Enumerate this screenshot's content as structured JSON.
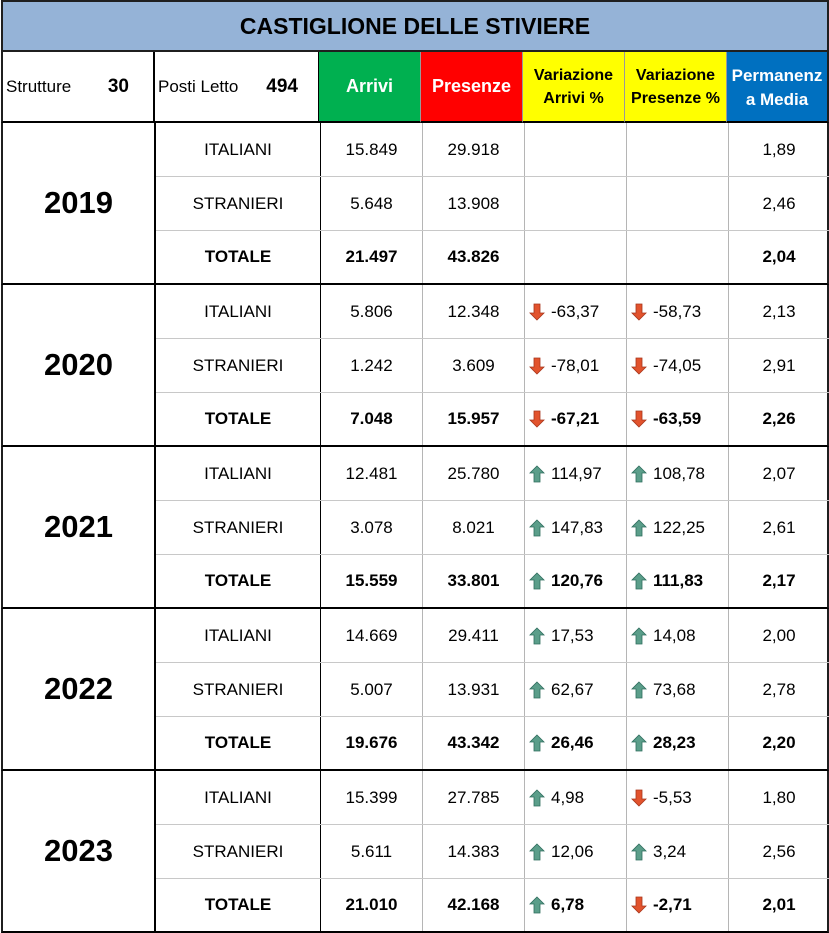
{
  "title": "CASTIGLIONE DELLE STIVIERE",
  "header": {
    "strutture_label": "Strutture",
    "strutture_value": "30",
    "posti_label": "Posti Letto",
    "posti_value": "494",
    "arrivi": "Arrivi",
    "presenze": "Presenze",
    "var_arrivi_1": "Variazione",
    "var_arrivi_2": "Arrivi %",
    "var_presenze_1": "Variazione",
    "var_presenze_2": "Presenze %",
    "perm_1": "Permanenz",
    "perm_2": "a Media"
  },
  "colors": {
    "up": "#5b9e8a",
    "down": "#e2532d",
    "arrivi": "#00b050",
    "presenze": "#ff0000",
    "variazione": "#ffff00",
    "permanenza": "#0070c0",
    "title_bg": "#95b3d7"
  },
  "years": [
    {
      "year": "2019",
      "rows": [
        {
          "type": "ITALIANI",
          "arrivi": "15.849",
          "presenze": "29.918",
          "var_arr": "",
          "var_arr_dir": "",
          "var_pres": "",
          "var_pres_dir": "",
          "perm": "1,89"
        },
        {
          "type": "STRANIERI",
          "arrivi": "5.648",
          "presenze": "13.908",
          "var_arr": "",
          "var_arr_dir": "",
          "var_pres": "",
          "var_pres_dir": "",
          "perm": "2,46"
        },
        {
          "type": "TOTALE",
          "arrivi": "21.497",
          "presenze": "43.826",
          "var_arr": "",
          "var_arr_dir": "",
          "var_pres": "",
          "var_pres_dir": "",
          "perm": "2,04"
        }
      ]
    },
    {
      "year": "2020",
      "rows": [
        {
          "type": "ITALIANI",
          "arrivi": "5.806",
          "presenze": "12.348",
          "var_arr": "-63,37",
          "var_arr_dir": "down",
          "var_pres": "-58,73",
          "var_pres_dir": "down",
          "perm": "2,13"
        },
        {
          "type": "STRANIERI",
          "arrivi": "1.242",
          "presenze": "3.609",
          "var_arr": "-78,01",
          "var_arr_dir": "down",
          "var_pres": "-74,05",
          "var_pres_dir": "down",
          "perm": "2,91"
        },
        {
          "type": "TOTALE",
          "arrivi": "7.048",
          "presenze": "15.957",
          "var_arr": "-67,21",
          "var_arr_dir": "down",
          "var_pres": "-63,59",
          "var_pres_dir": "down",
          "perm": "2,26"
        }
      ]
    },
    {
      "year": "2021",
      "rows": [
        {
          "type": "ITALIANI",
          "arrivi": "12.481",
          "presenze": "25.780",
          "var_arr": "114,97",
          "var_arr_dir": "up",
          "var_pres": "108,78",
          "var_pres_dir": "up",
          "perm": "2,07"
        },
        {
          "type": "STRANIERI",
          "arrivi": "3.078",
          "presenze": "8.021",
          "var_arr": "147,83",
          "var_arr_dir": "up",
          "var_pres": "122,25",
          "var_pres_dir": "up",
          "perm": "2,61"
        },
        {
          "type": "TOTALE",
          "arrivi": "15.559",
          "presenze": "33.801",
          "var_arr": "120,76",
          "var_arr_dir": "up",
          "var_pres": "111,83",
          "var_pres_dir": "up",
          "perm": "2,17"
        }
      ]
    },
    {
      "year": "2022",
      "rows": [
        {
          "type": "ITALIANI",
          "arrivi": "14.669",
          "presenze": "29.411",
          "var_arr": "17,53",
          "var_arr_dir": "up",
          "var_pres": "14,08",
          "var_pres_dir": "up",
          "perm": "2,00"
        },
        {
          "type": "STRANIERI",
          "arrivi": "5.007",
          "presenze": "13.931",
          "var_arr": "62,67",
          "var_arr_dir": "up",
          "var_pres": "73,68",
          "var_pres_dir": "up",
          "perm": "2,78"
        },
        {
          "type": "TOTALE",
          "arrivi": "19.676",
          "presenze": "43.342",
          "var_arr": "26,46",
          "var_arr_dir": "up",
          "var_pres": "28,23",
          "var_pres_dir": "up",
          "perm": "2,20"
        }
      ]
    },
    {
      "year": "2023",
      "rows": [
        {
          "type": "ITALIANI",
          "arrivi": "15.399",
          "presenze": "27.785",
          "var_arr": "4,98",
          "var_arr_dir": "up",
          "var_pres": "-5,53",
          "var_pres_dir": "down",
          "perm": "1,80"
        },
        {
          "type": "STRANIERI",
          "arrivi": "5.611",
          "presenze": "14.383",
          "var_arr": "12,06",
          "var_arr_dir": "up",
          "var_pres": "3,24",
          "var_pres_dir": "up",
          "perm": "2,56"
        },
        {
          "type": "TOTALE",
          "arrivi": "21.010",
          "presenze": "42.168",
          "var_arr": "6,78",
          "var_arr_dir": "up",
          "var_pres": "-2,71",
          "var_pres_dir": "down",
          "perm": "2,01"
        }
      ]
    }
  ]
}
